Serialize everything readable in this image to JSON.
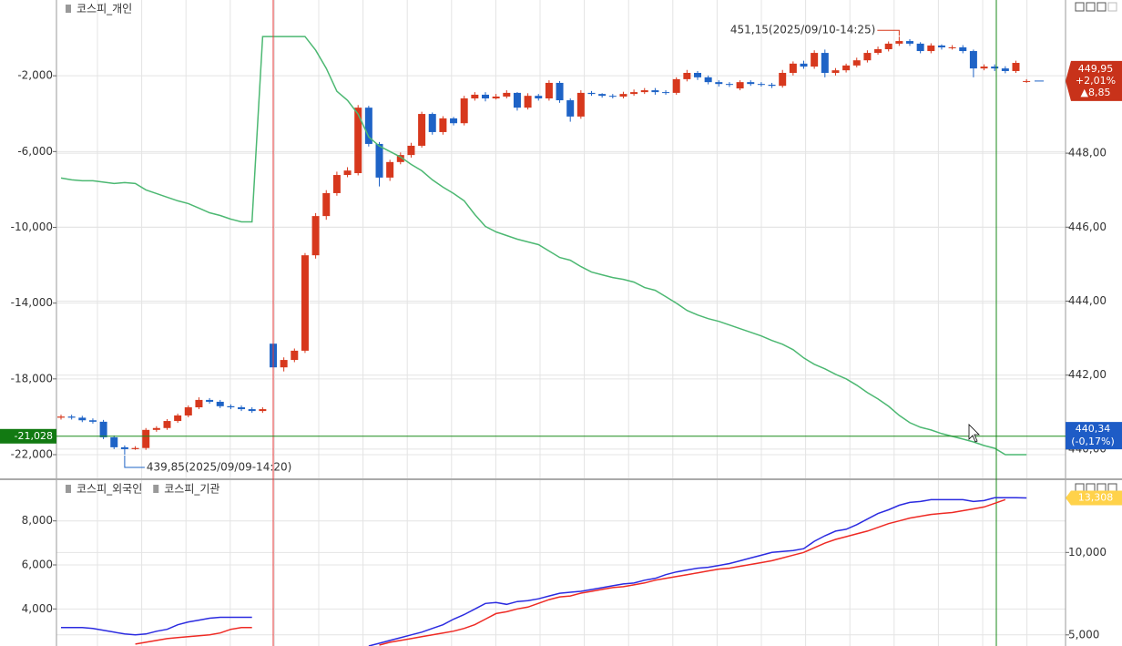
{
  "chart_data": [
    {
      "type": "candlestick",
      "series": [
        {
          "name": "코스피_개인",
          "color": "#4cb872",
          "axis": "y",
          "values": [
            -7397,
            -7493,
            -7542,
            -7542,
            -7614,
            -7686,
            -7638,
            -7686,
            -8024,
            -8216,
            -8409,
            -8602,
            -8746,
            -8987,
            -9228,
            -9373,
            -9566,
            -9710,
            -9710,
            72,
            72,
            72,
            72,
            72,
            -650,
            -1614,
            -2819,
            -3301,
            -4024,
            -5229,
            -5710,
            -5999,
            -6289,
            -6674,
            -7012,
            -7493,
            -7879,
            -8216,
            -8602,
            -9325,
            -9951,
            -10240,
            -10433,
            -10626,
            -10770,
            -10915,
            -11252,
            -11590,
            -11734,
            -12071,
            -12361,
            -12505,
            -12650,
            -12746,
            -12891,
            -13180,
            -13324,
            -13662,
            -13999,
            -14385,
            -14626,
            -14818,
            -14963,
            -15156,
            -15348,
            -15541,
            -15734,
            -15975,
            -16168,
            -16457,
            -16890,
            -17228,
            -17469,
            -17758,
            -17999,
            -18336,
            -18722,
            -19059,
            -19445,
            -19926,
            -20312,
            -20553,
            -20697,
            -20890,
            -21035,
            -21179,
            -21324,
            -21517,
            -21661,
            -21999,
            -21999,
            -21999
          ]
        }
      ],
      "candles": {
        "axis": "y2",
        "up_color": "#d7381d",
        "down_color": "#1e63c6",
        "open": [
          440.85,
          440.88,
          440.85,
          440.78,
          440.74,
          440.32,
          440.05,
          440.0,
          440.03,
          440.52,
          440.57,
          440.76,
          440.91,
          441.13,
          441.33,
          441.28,
          441.16,
          441.13,
          441.08,
          441.03,
          442.85,
          442.21,
          442.41,
          442.66,
          445.24,
          446.3,
          446.92,
          447.41,
          447.46,
          449.23,
          448.25,
          447.34,
          447.76,
          447.95,
          448.2,
          449.06,
          448.57,
          448.94,
          448.81,
          449.48,
          449.58,
          449.48,
          449.53,
          449.63,
          449.23,
          449.55,
          449.48,
          449.9,
          449.43,
          448.99,
          449.63,
          449.6,
          449.55,
          449.53,
          449.6,
          449.65,
          449.7,
          449.65,
          449.63,
          450.0,
          450.17,
          450.05,
          449.92,
          449.87,
          449.75,
          449.92,
          449.87,
          449.85,
          449.82,
          450.17,
          450.42,
          450.34,
          450.71,
          450.17,
          450.24,
          450.37,
          450.51,
          450.71,
          450.81,
          450.96,
          451.03,
          450.96,
          450.76,
          450.91,
          450.86,
          450.86,
          450.76,
          450.29,
          450.34,
          450.29,
          450.22,
          449.95
        ],
        "high": [
          440.93,
          440.93,
          440.9,
          440.83,
          440.79,
          440.37,
          440.1,
          440.08,
          440.57,
          440.62,
          440.81,
          440.96,
          441.18,
          441.4,
          441.38,
          441.33,
          441.21,
          441.18,
          441.13,
          441.13,
          442.95,
          442.48,
          442.72,
          445.3,
          446.38,
          447.0,
          447.5,
          447.62,
          449.3,
          449.28,
          448.3,
          447.82,
          448.02,
          448.28,
          449.12,
          449.1,
          449.0,
          448.98,
          449.55,
          449.65,
          449.65,
          449.6,
          449.7,
          449.65,
          449.62,
          449.6,
          449.97,
          449.95,
          449.48,
          449.7,
          449.68,
          449.62,
          449.6,
          449.66,
          449.72,
          449.76,
          449.76,
          449.7,
          450.05,
          450.25,
          450.22,
          450.1,
          449.97,
          449.92,
          449.97,
          449.97,
          449.92,
          449.9,
          450.25,
          450.48,
          450.5,
          450.78,
          450.8,
          450.3,
          450.42,
          450.58,
          450.78,
          450.88,
          451.02,
          451.15,
          451.08,
          451.0,
          450.97,
          450.94,
          450.92,
          450.92,
          450.8,
          450.4,
          450.4,
          450.35,
          450.5,
          450.0
        ],
        "low": [
          440.8,
          440.8,
          440.73,
          440.69,
          440.27,
          440.0,
          439.85,
          439.98,
          439.98,
          440.47,
          440.52,
          440.71,
          440.86,
          441.08,
          441.23,
          441.11,
          441.08,
          441.03,
          440.98,
          440.98,
          441.95,
          442.1,
          442.35,
          442.6,
          445.15,
          446.2,
          446.85,
          447.35,
          447.4,
          448.18,
          447.1,
          447.25,
          447.7,
          447.88,
          448.15,
          448.5,
          448.5,
          448.75,
          448.75,
          449.42,
          449.4,
          449.45,
          449.48,
          449.15,
          449.18,
          449.42,
          449.42,
          449.36,
          448.85,
          448.93,
          449.55,
          449.5,
          449.48,
          449.48,
          449.55,
          449.6,
          449.58,
          449.58,
          449.58,
          449.94,
          449.98,
          449.86,
          449.8,
          449.79,
          449.7,
          449.82,
          449.8,
          449.76,
          449.77,
          450.1,
          450.28,
          450.28,
          450.05,
          450.1,
          450.18,
          450.32,
          450.45,
          450.66,
          450.75,
          450.9,
          450.9,
          450.7,
          450.7,
          450.8,
          450.8,
          450.7,
          450.05,
          450.24,
          450.22,
          450.16,
          450.17,
          449.9
        ],
        "close": [
          440.88,
          440.85,
          440.78,
          440.74,
          440.32,
          440.05,
          440.0,
          440.03,
          440.52,
          440.57,
          440.76,
          440.91,
          441.13,
          441.33,
          441.28,
          441.16,
          441.13,
          441.08,
          441.03,
          441.08,
          442.21,
          442.41,
          442.66,
          445.24,
          446.3,
          446.92,
          447.41,
          447.53,
          449.23,
          448.25,
          447.34,
          447.76,
          447.95,
          448.2,
          449.06,
          448.57,
          448.94,
          448.81,
          449.48,
          449.58,
          449.48,
          449.53,
          449.63,
          449.23,
          449.55,
          449.48,
          449.9,
          449.43,
          448.99,
          449.63,
          449.6,
          449.55,
          449.53,
          449.6,
          449.65,
          449.7,
          449.65,
          449.63,
          450.0,
          450.17,
          450.05,
          449.92,
          449.87,
          449.85,
          449.92,
          449.87,
          449.85,
          449.82,
          450.17,
          450.42,
          450.34,
          450.71,
          450.17,
          450.24,
          450.37,
          450.51,
          450.71,
          450.81,
          450.96,
          451.03,
          450.96,
          450.76,
          450.91,
          450.86,
          450.86,
          450.76,
          450.29,
          450.34,
          450.29,
          450.22,
          450.44,
          449.95
        ]
      },
      "ylim": [
        -23250,
        2000
      ],
      "yticks": [
        {
          "value": -2000,
          "label": "-2,000"
        },
        {
          "value": -6000,
          "label": "-6,000"
        },
        {
          "value": -10000,
          "label": "-10,000"
        },
        {
          "value": -14000,
          "label": "-14,000"
        },
        {
          "value": -18000,
          "label": "-18,000"
        },
        {
          "value": -22000,
          "label": "-22,000"
        }
      ],
      "y2lim": [
        439.21,
        452.14
      ],
      "y2ticks": [
        {
          "value": 448,
          "label": "448,00"
        },
        {
          "value": 446,
          "label": "446,00"
        },
        {
          "value": 444,
          "label": "444,00"
        },
        {
          "value": 442,
          "label": "442,00"
        },
        {
          "value": 440,
          "label": "440,00"
        }
      ],
      "grid": true,
      "annotations": [
        {
          "value": 451.15,
          "label": "451,15(2025/09/10-14:25)",
          "color": "#d7381d"
        },
        {
          "value": 439.85,
          "label": "439,85(2025/09/09-14:20)",
          "color": "#1e63c6"
        }
      ],
      "last_price": {
        "value": 449.95,
        "label": "449,95",
        "change_label": "+2,01%",
        "diff_label": "▲8,85",
        "color": "#c8321a"
      },
      "crosshair": {
        "y_value": -21028,
        "y_label": "-21,028",
        "y2_value": 440.34,
        "y2_label": "440,34",
        "y2_change_label": "(-0,17%)",
        "color": "#1a8a1a"
      }
    },
    {
      "type": "line",
      "series": [
        {
          "name": "코스피_외국인",
          "color": "#ee2a24",
          "axis": "y",
          "values": [
            null,
            null,
            null,
            null,
            null,
            null,
            null,
            2401,
            2485,
            2569,
            2653,
            2695,
            2737,
            2779,
            2822,
            2906,
            3074,
            3158,
            3158,
            null,
            null,
            null,
            null,
            null,
            null,
            null,
            null,
            null,
            null,
            null,
            2359,
            2485,
            2569,
            2653,
            2737,
            2822,
            2906,
            2990,
            3116,
            3285,
            3537,
            3790,
            3874,
            4000,
            4085,
            4253,
            4422,
            4548,
            4590,
            4716,
            4800,
            4885,
            4969,
            5011,
            5095,
            5179,
            5306,
            5390,
            5474,
            5558,
            5642,
            5727,
            5811,
            5853,
            5937,
            6021,
            6105,
            6190,
            6316,
            6442,
            6569,
            6779,
            6990,
            7158,
            7284,
            7411,
            7537,
            7705,
            7874,
            8000,
            8126,
            8211,
            8295,
            8337,
            8379,
            8463,
            8547,
            8632,
            8800,
            8968,
            null,
            null
          ]
        },
        {
          "name": "코스피_기관",
          "color": "#2b2be0",
          "axis": "y2",
          "values": [
            5448,
            5448,
            5448,
            5392,
            5279,
            5167,
            5054,
            4998,
            5054,
            5223,
            5335,
            5616,
            5785,
            5897,
            6010,
            6066,
            6066,
            6066,
            6066,
            null,
            null,
            null,
            null,
            null,
            null,
            null,
            null,
            null,
            null,
            4324,
            4492,
            4661,
            4830,
            4998,
            5167,
            5392,
            5616,
            5954,
            6235,
            6572,
            6909,
            6965,
            6853,
            7021,
            7078,
            7190,
            7359,
            7527,
            7584,
            7640,
            7752,
            7864,
            7977,
            8089,
            8145,
            8314,
            8426,
            8651,
            8820,
            8932,
            9045,
            9101,
            9213,
            9326,
            9494,
            9663,
            9831,
            10000,
            10056,
            10112,
            10225,
            10674,
            11012,
            11293,
            11405,
            11686,
            12023,
            12360,
            12585,
            12866,
            13035,
            13091,
            13203,
            13203,
            13203,
            13203,
            13091,
            13147,
            13316,
            13316,
            13316,
            13308
          ]
        }
      ],
      "ylim": [
        2316,
        9850
      ],
      "yticks": [
        {
          "value": 8000,
          "label": "8,000"
        },
        {
          "value": 6000,
          "label": "6,000"
        },
        {
          "value": 4000,
          "label": "4,000"
        }
      ],
      "y2lim": [
        4326,
        14383
      ],
      "y2ticks": [
        {
          "value": 10000,
          "label": "10,000"
        },
        {
          "value": 5000,
          "label": "5,000"
        }
      ],
      "grid": true,
      "last_value": {
        "value": 13308,
        "label": "13,308",
        "color": "#ffd24a"
      }
    }
  ]
}
